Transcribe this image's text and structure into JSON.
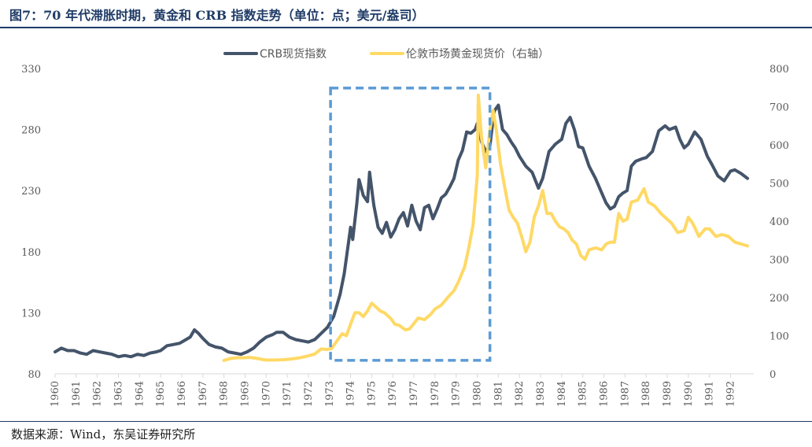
{
  "figure": {
    "title": "图7：70 年代滞胀时期，黄金和 CRB 指数走势（单位：点；美元/盎司）",
    "source": "数据来源：Wind，东吴证券研究所"
  },
  "chart_data": {
    "type": "line",
    "x_unit": "year",
    "x_tick_labels": [
      "1960",
      "1961",
      "1962",
      "1963",
      "1964",
      "1965",
      "1966",
      "1967",
      "1968",
      "1969",
      "1970",
      "1971",
      "1972",
      "1973",
      "1974",
      "1975",
      "1976",
      "1977",
      "1978",
      "1979",
      "1980",
      "1981",
      "1982",
      "1983",
      "1984",
      "1985",
      "1986",
      "1987",
      "1988",
      "1989",
      "1990",
      "1991",
      "1992"
    ],
    "xlim": [
      1960,
      1993.1
    ],
    "y_left": {
      "ticks": [
        80,
        130,
        180,
        230,
        280,
        330
      ],
      "range": [
        80,
        330
      ]
    },
    "y_right": {
      "ticks": [
        0,
        100,
        200,
        300,
        400,
        500,
        600,
        700,
        800
      ],
      "range": [
        0,
        800
      ]
    },
    "legend_position": "top-center",
    "grid": false,
    "highlight_box": {
      "x_range": [
        1973.05,
        1980.6
      ],
      "y_left_range": [
        91,
        314
      ],
      "color": "#5b9bd5",
      "style": "dashed"
    },
    "series": [
      {
        "name": "CRB现货指数",
        "axis": "left",
        "color": "#44546a",
        "points": [
          [
            1960.0,
            98
          ],
          [
            1960.3,
            101
          ],
          [
            1960.6,
            99
          ],
          [
            1960.9,
            99
          ],
          [
            1961.2,
            97
          ],
          [
            1961.5,
            96
          ],
          [
            1961.8,
            99
          ],
          [
            1962.1,
            98
          ],
          [
            1962.4,
            97
          ],
          [
            1962.7,
            96
          ],
          [
            1963.0,
            94
          ],
          [
            1963.3,
            95
          ],
          [
            1963.6,
            94
          ],
          [
            1963.9,
            96
          ],
          [
            1964.2,
            95
          ],
          [
            1964.5,
            97
          ],
          [
            1964.8,
            98
          ],
          [
            1965.0,
            99
          ],
          [
            1965.3,
            103
          ],
          [
            1965.6,
            104
          ],
          [
            1965.9,
            105
          ],
          [
            1966.1,
            107
          ],
          [
            1966.4,
            110
          ],
          [
            1966.6,
            116
          ],
          [
            1966.8,
            113
          ],
          [
            1967.0,
            109
          ],
          [
            1967.3,
            104
          ],
          [
            1967.6,
            102
          ],
          [
            1967.9,
            101
          ],
          [
            1968.2,
            98
          ],
          [
            1968.5,
            97
          ],
          [
            1968.8,
            96
          ],
          [
            1969.1,
            98
          ],
          [
            1969.4,
            101
          ],
          [
            1969.7,
            106
          ],
          [
            1970.0,
            110
          ],
          [
            1970.3,
            112
          ],
          [
            1970.5,
            114
          ],
          [
            1970.8,
            114
          ],
          [
            1971.1,
            110
          ],
          [
            1971.4,
            108
          ],
          [
            1971.7,
            107
          ],
          [
            1972.0,
            106
          ],
          [
            1972.3,
            108
          ],
          [
            1972.6,
            113
          ],
          [
            1972.9,
            118
          ],
          [
            1973.2,
            127
          ],
          [
            1973.5,
            145
          ],
          [
            1973.7,
            162
          ],
          [
            1974.0,
            200
          ],
          [
            1974.1,
            190
          ],
          [
            1974.3,
            220
          ],
          [
            1974.4,
            239
          ],
          [
            1974.6,
            226
          ],
          [
            1974.8,
            221
          ],
          [
            1974.9,
            245
          ],
          [
            1975.1,
            218
          ],
          [
            1975.3,
            200
          ],
          [
            1975.5,
            195
          ],
          [
            1975.7,
            204
          ],
          [
            1975.9,
            192
          ],
          [
            1976.1,
            198
          ],
          [
            1976.3,
            207
          ],
          [
            1976.5,
            212
          ],
          [
            1976.7,
            201
          ],
          [
            1976.9,
            218
          ],
          [
            1977.1,
            205
          ],
          [
            1977.3,
            198
          ],
          [
            1977.5,
            216
          ],
          [
            1977.7,
            218
          ],
          [
            1977.9,
            207
          ],
          [
            1978.1,
            215
          ],
          [
            1978.3,
            224
          ],
          [
            1978.5,
            227
          ],
          [
            1978.7,
            233
          ],
          [
            1978.9,
            240
          ],
          [
            1979.1,
            255
          ],
          [
            1979.3,
            263
          ],
          [
            1979.5,
            278
          ],
          [
            1979.7,
            277
          ],
          [
            1979.9,
            280
          ],
          [
            1980.0,
            285
          ],
          [
            1980.2,
            270
          ],
          [
            1980.4,
            262
          ],
          [
            1980.6,
            267
          ],
          [
            1980.8,
            295
          ],
          [
            1981.0,
            300
          ],
          [
            1981.2,
            280
          ],
          [
            1981.4,
            276
          ],
          [
            1981.6,
            270
          ],
          [
            1981.8,
            265
          ],
          [
            1982.0,
            258
          ],
          [
            1982.3,
            250
          ],
          [
            1982.6,
            245
          ],
          [
            1982.9,
            232
          ],
          [
            1983.1,
            240
          ],
          [
            1983.4,
            262
          ],
          [
            1983.7,
            268
          ],
          [
            1984.0,
            272
          ],
          [
            1984.2,
            285
          ],
          [
            1984.4,
            290
          ],
          [
            1984.6,
            280
          ],
          [
            1984.8,
            266
          ],
          [
            1985.0,
            265
          ],
          [
            1985.3,
            250
          ],
          [
            1985.6,
            240
          ],
          [
            1985.9,
            228
          ],
          [
            1986.1,
            220
          ],
          [
            1986.3,
            215
          ],
          [
            1986.5,
            217
          ],
          [
            1986.7,
            225
          ],
          [
            1986.9,
            228
          ],
          [
            1987.1,
            230
          ],
          [
            1987.3,
            250
          ],
          [
            1987.5,
            254
          ],
          [
            1987.8,
            256
          ],
          [
            1988.0,
            257
          ],
          [
            1988.3,
            262
          ],
          [
            1988.6,
            279
          ],
          [
            1988.9,
            283
          ],
          [
            1989.1,
            280
          ],
          [
            1989.4,
            282
          ],
          [
            1989.6,
            272
          ],
          [
            1989.8,
            265
          ],
          [
            1990.0,
            268
          ],
          [
            1990.3,
            278
          ],
          [
            1990.6,
            272
          ],
          [
            1990.9,
            258
          ],
          [
            1991.1,
            252
          ],
          [
            1991.4,
            242
          ],
          [
            1991.7,
            238
          ],
          [
            1992.0,
            246
          ],
          [
            1992.2,
            247
          ],
          [
            1992.5,
            244
          ],
          [
            1992.8,
            240
          ]
        ]
      },
      {
        "name": "伦敦市场黄金现货价（右轴）",
        "axis": "right",
        "color": "#ffd966",
        "points": [
          [
            1968.0,
            35
          ],
          [
            1968.3,
            40
          ],
          [
            1968.6,
            42
          ],
          [
            1968.9,
            42
          ],
          [
            1969.2,
            43
          ],
          [
            1969.5,
            41
          ],
          [
            1969.8,
            38
          ],
          [
            1970.0,
            36
          ],
          [
            1970.4,
            36
          ],
          [
            1970.8,
            37
          ],
          [
            1971.2,
            39
          ],
          [
            1971.6,
            42
          ],
          [
            1972.0,
            47
          ],
          [
            1972.3,
            52
          ],
          [
            1972.6,
            65
          ],
          [
            1972.9,
            64
          ],
          [
            1973.1,
            66
          ],
          [
            1973.4,
            90
          ],
          [
            1973.6,
            105
          ],
          [
            1973.8,
            100
          ],
          [
            1974.0,
            130
          ],
          [
            1974.2,
            160
          ],
          [
            1974.4,
            160
          ],
          [
            1974.6,
            150
          ],
          [
            1974.8,
            165
          ],
          [
            1975.0,
            185
          ],
          [
            1975.2,
            175
          ],
          [
            1975.4,
            165
          ],
          [
            1975.6,
            160
          ],
          [
            1975.9,
            145
          ],
          [
            1976.1,
            130
          ],
          [
            1976.3,
            127
          ],
          [
            1976.6,
            115
          ],
          [
            1976.8,
            118
          ],
          [
            1977.0,
            132
          ],
          [
            1977.2,
            146
          ],
          [
            1977.5,
            142
          ],
          [
            1977.8,
            156
          ],
          [
            1978.0,
            170
          ],
          [
            1978.3,
            180
          ],
          [
            1978.6,
            200
          ],
          [
            1978.9,
            218
          ],
          [
            1979.1,
            240
          ],
          [
            1979.4,
            280
          ],
          [
            1979.6,
            330
          ],
          [
            1979.8,
            390
          ],
          [
            1980.0,
            520
          ],
          [
            1980.05,
            730
          ],
          [
            1980.2,
            620
          ],
          [
            1980.4,
            540
          ],
          [
            1980.6,
            640
          ],
          [
            1980.75,
            690
          ],
          [
            1980.9,
            640
          ],
          [
            1981.1,
            550
          ],
          [
            1981.3,
            490
          ],
          [
            1981.5,
            430
          ],
          [
            1981.7,
            410
          ],
          [
            1981.9,
            395
          ],
          [
            1982.1,
            360
          ],
          [
            1982.3,
            320
          ],
          [
            1982.5,
            345
          ],
          [
            1982.7,
            410
          ],
          [
            1982.9,
            440
          ],
          [
            1983.1,
            480
          ],
          [
            1983.3,
            420
          ],
          [
            1983.5,
            420
          ],
          [
            1983.7,
            400
          ],
          [
            1983.9,
            385
          ],
          [
            1984.1,
            380
          ],
          [
            1984.3,
            370
          ],
          [
            1984.5,
            350
          ],
          [
            1984.7,
            340
          ],
          [
            1984.9,
            310
          ],
          [
            1985.1,
            300
          ],
          [
            1985.3,
            325
          ],
          [
            1985.6,
            330
          ],
          [
            1985.9,
            325
          ],
          [
            1986.1,
            340
          ],
          [
            1986.3,
            345
          ],
          [
            1986.5,
            345
          ],
          [
            1986.7,
            420
          ],
          [
            1986.9,
            400
          ],
          [
            1987.1,
            405
          ],
          [
            1987.3,
            450
          ],
          [
            1987.6,
            455
          ],
          [
            1987.9,
            485
          ],
          [
            1988.1,
            450
          ],
          [
            1988.4,
            440
          ],
          [
            1988.7,
            420
          ],
          [
            1988.9,
            410
          ],
          [
            1989.2,
            395
          ],
          [
            1989.5,
            370
          ],
          [
            1989.8,
            375
          ],
          [
            1990.0,
            410
          ],
          [
            1990.2,
            395
          ],
          [
            1990.5,
            360
          ],
          [
            1990.8,
            380
          ],
          [
            1991.0,
            380
          ],
          [
            1991.3,
            360
          ],
          [
            1991.6,
            365
          ],
          [
            1991.9,
            360
          ],
          [
            1992.2,
            345
          ],
          [
            1992.5,
            340
          ],
          [
            1992.8,
            335
          ]
        ]
      }
    ]
  }
}
